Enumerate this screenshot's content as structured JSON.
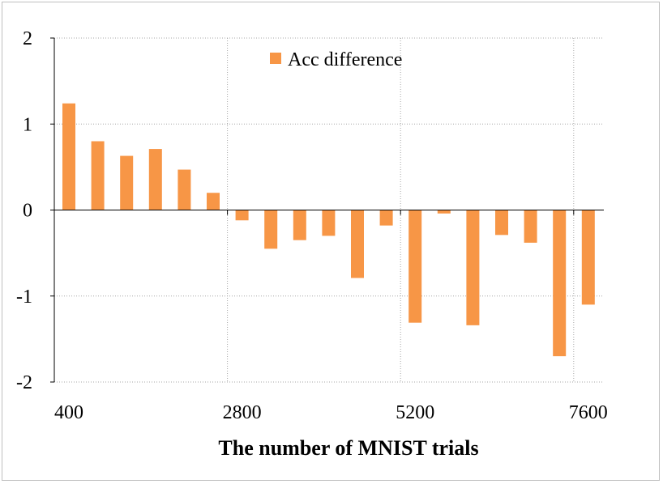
{
  "chart_data": {
    "type": "bar",
    "title": "",
    "xlabel": "The number of MNIST trials",
    "ylabel": "",
    "ylim": [
      -2,
      2
    ],
    "yticks": [
      "-2",
      "-1",
      "0",
      "1",
      "2"
    ],
    "x_tick_labels": [
      "400",
      "2800",
      "5200",
      "7600"
    ],
    "categories": [
      "400",
      "800",
      "1200",
      "1600",
      "2000",
      "2400",
      "2800",
      "3200",
      "3600",
      "4000",
      "4400",
      "4800",
      "5200",
      "5600",
      "6000",
      "6400",
      "6800",
      "7200",
      "7600"
    ],
    "series": [
      {
        "name": "Acc difference",
        "color": "#F79646",
        "values": [
          1.24,
          0.8,
          0.63,
          0.71,
          0.47,
          0.2,
          -0.12,
          -0.45,
          -0.35,
          -0.3,
          -0.79,
          -0.18,
          -1.31,
          -0.04,
          -1.34,
          -0.29,
          -0.38,
          -1.7,
          -1.1
        ]
      }
    ],
    "grid": true,
    "legend_position": "top-center"
  }
}
